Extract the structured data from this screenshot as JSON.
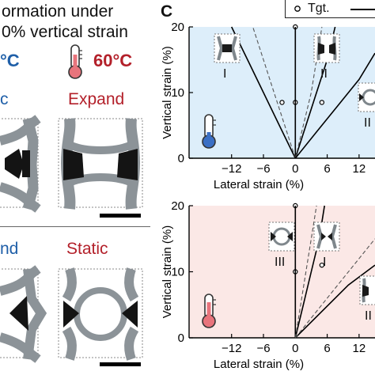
{
  "left_panel": {
    "title_line1": "ormation under",
    "title_line2": "0% vertical strain",
    "temp_cold": "°C",
    "temp_hot": "60°C",
    "label_top_left": "c",
    "label_top_right": "Expand",
    "label_bottom_left": "nd",
    "label_bottom_right": "Static",
    "colors": {
      "cold": "#1f5fa8",
      "hot": "#b3202a"
    }
  },
  "panel_c": {
    "panel_letter": "C",
    "legend_label": "Tgt.",
    "top_chart": {
      "background": "#ddeefa",
      "insets": [
        "I",
        "II",
        "II"
      ],
      "thermometer": "cold-thermometer-icon"
    },
    "bottom_chart": {
      "background": "#fbe8e6",
      "insets": [
        "III",
        "I",
        "II"
      ],
      "thermometer": "hot-thermometer-icon"
    }
  },
  "chart_data": [
    {
      "type": "line",
      "title": "",
      "xlabel": "Lateral strain (%)",
      "ylabel": "Vertical strain (%)",
      "xlim": [
        -20,
        15
      ],
      "ylim": [
        0,
        20
      ],
      "x_ticks": [
        -12,
        -6,
        0,
        6,
        12
      ],
      "y_ticks": [
        0,
        10,
        20
      ],
      "grid": false,
      "legend": "top-right",
      "series": [
        {
          "name": "Tgt.",
          "style": "marker",
          "x": [
            0,
            -2.5,
            0,
            5
          ],
          "y": [
            20,
            8.5,
            8.5,
            8.5
          ]
        },
        {
          "style": "solid",
          "x": [
            0,
            -3,
            -6,
            -9,
            -12
          ],
          "y": [
            0,
            5,
            10,
            15,
            20
          ]
        },
        {
          "style": "dashed",
          "x": [
            0,
            -2,
            -4,
            -6,
            -8
          ],
          "y": [
            0,
            5,
            10,
            15,
            20
          ]
        },
        {
          "style": "solid",
          "x": [
            0,
            0,
            0,
            0,
            0
          ],
          "y": [
            0,
            5,
            10,
            15,
            20
          ]
        },
        {
          "style": "solid",
          "x": [
            0,
            2,
            4,
            6,
            7.5
          ],
          "y": [
            0,
            5,
            10,
            15,
            20
          ]
        },
        {
          "style": "dashed",
          "x": [
            0,
            1.5,
            3,
            4,
            5
          ],
          "y": [
            0,
            5,
            10,
            15,
            20
          ]
        },
        {
          "style": "solid",
          "x": [
            0,
            4,
            8,
            12,
            15
          ],
          "y": [
            0,
            4,
            8,
            12,
            16
          ]
        }
      ]
    },
    {
      "type": "line",
      "title": "",
      "xlabel": "Lateral strain (%)",
      "ylabel": "Vertical strain (%)",
      "xlim": [
        -20,
        15
      ],
      "ylim": [
        0,
        20
      ],
      "x_ticks": [
        -12,
        -6,
        0,
        6,
        12
      ],
      "y_ticks": [
        0,
        10,
        20
      ],
      "grid": false,
      "series": [
        {
          "name": "Tgt.",
          "style": "marker",
          "x": [
            0,
            0,
            5
          ],
          "y": [
            20,
            10,
            11
          ]
        },
        {
          "style": "solid",
          "x": [
            0,
            0,
            0,
            0,
            0
          ],
          "y": [
            0,
            5,
            10,
            15,
            20
          ]
        },
        {
          "style": "solid",
          "x": [
            0,
            1.5,
            3,
            4.5,
            5.5
          ],
          "y": [
            0,
            5,
            10,
            15,
            20
          ]
        },
        {
          "style": "dashed",
          "x": [
            0,
            1,
            2,
            3,
            4
          ],
          "y": [
            0,
            5,
            10,
            15,
            20
          ]
        },
        {
          "style": "solid",
          "x": [
            0,
            5,
            10,
            15
          ],
          "y": [
            0,
            4,
            8,
            11
          ]
        },
        {
          "style": "dashed",
          "x": [
            0,
            4,
            8,
            12,
            15
          ],
          "y": [
            0,
            4,
            8,
            12,
            15
          ]
        }
      ]
    }
  ]
}
